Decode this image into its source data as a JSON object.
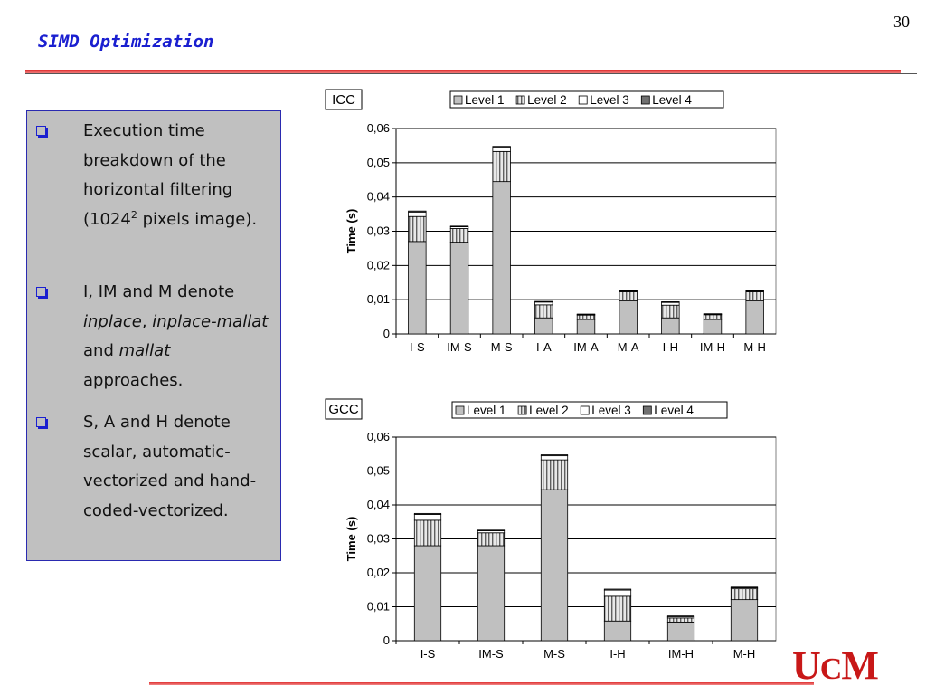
{
  "slide": {
    "number": "30",
    "title": "SIMD Optimization",
    "logo_text": "UCM"
  },
  "bullets": [
    {
      "parts": [
        {
          "t": "Execution time breakdown of the horizontal filtering (1024"
        },
        {
          "t": "2",
          "sup": true
        },
        {
          "t": " pixels image)."
        }
      ]
    },
    {
      "parts": [
        {
          "t": "I, IM and M denote "
        },
        {
          "t": "inplace",
          "em": true
        },
        {
          "t": ", "
        },
        {
          "t": "inplace-mallat",
          "em": true
        },
        {
          "t": " and "
        },
        {
          "t": "mallat",
          "em": true
        },
        {
          "t": " approaches."
        }
      ]
    },
    {
      "parts": [
        {
          "t": "S, A and H denote scalar, automatic-vectorized and hand-coded-vectorized."
        }
      ]
    }
  ],
  "legend_series": [
    {
      "name": "Level 1",
      "color": "#c0c0c0",
      "pattern": "solid"
    },
    {
      "name": "Level 2",
      "color": "#808080",
      "pattern": "vertical-stripes"
    },
    {
      "name": "Level 3",
      "color": "#ffffff",
      "pattern": "solid"
    },
    {
      "name": "Level 4",
      "color": "#707070",
      "pattern": "solid"
    }
  ],
  "chart_data": [
    {
      "type": "bar",
      "stacked": true,
      "title": "ICC",
      "ylabel": "Time (s)",
      "ylim": [
        0,
        0.06
      ],
      "yticks": [
        "0",
        "0,01",
        "0,02",
        "0,03",
        "0,04",
        "0,05",
        "0,06"
      ],
      "grid": true,
      "legend": "top",
      "categories": [
        "I-S",
        "IM-S",
        "M-S",
        "I-A",
        "IM-A",
        "M-A",
        "I-H",
        "IM-H",
        "M-H"
      ],
      "series": [
        {
          "name": "Level 1",
          "values": [
            0.027,
            0.0268,
            0.0445,
            0.0047,
            0.0042,
            0.0097,
            0.0047,
            0.0042,
            0.0097
          ]
        },
        {
          "name": "Level 2",
          "values": [
            0.0073,
            0.004,
            0.0088,
            0.0038,
            0.0013,
            0.0026,
            0.0037,
            0.0014,
            0.0026
          ]
        },
        {
          "name": "Level 3",
          "values": [
            0.0013,
            0.0005,
            0.0012,
            0.0008,
            0.0002,
            0.0002,
            0.0008,
            0.0002,
            0.0002
          ]
        },
        {
          "name": "Level 4",
          "values": [
            0.0003,
            0.0002,
            0.0003,
            0.0002,
            0.0001,
            0.0001,
            0.0002,
            0.0001,
            0.0001
          ]
        }
      ]
    },
    {
      "type": "bar",
      "stacked": true,
      "title": "GCC",
      "ylabel": "Time (s)",
      "ylim": [
        0,
        0.06
      ],
      "yticks": [
        "0",
        "0,01",
        "0,02",
        "0,03",
        "0,04",
        "0,05",
        "0,06"
      ],
      "grid": true,
      "legend": "top",
      "categories": [
        "I-S",
        "IM-S",
        "M-S",
        "I-H",
        "IM-H",
        "M-H"
      ],
      "series": [
        {
          "name": "Level 1",
          "values": [
            0.028,
            0.028,
            0.0445,
            0.0058,
            0.0055,
            0.0121
          ]
        },
        {
          "name": "Level 2",
          "values": [
            0.0075,
            0.0038,
            0.0088,
            0.0073,
            0.0012,
            0.0032
          ]
        },
        {
          "name": "Level 3",
          "values": [
            0.0017,
            0.0006,
            0.0012,
            0.0018,
            0.0004,
            0.0003
          ]
        },
        {
          "name": "Level 4",
          "values": [
            0.0003,
            0.0002,
            0.0003,
            0.0003,
            0.0002,
            0.0002
          ]
        }
      ]
    }
  ]
}
